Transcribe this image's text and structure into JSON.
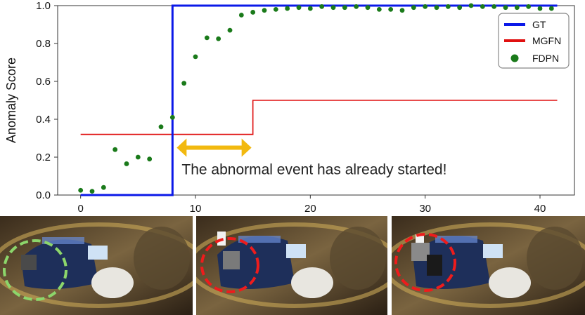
{
  "chart_data": {
    "type": "line",
    "title": "",
    "xlabel": "",
    "ylabel": "Anomaly Score",
    "xlim": [
      -2,
      43
    ],
    "ylim": [
      0.0,
      1.0
    ],
    "x_ticks": [
      0,
      10,
      20,
      30,
      40
    ],
    "y_ticks": [
      0.0,
      0.2,
      0.4,
      0.6,
      0.8,
      1.0
    ],
    "x_tick_labels": [
      "0",
      "10",
      "20",
      "30",
      "40"
    ],
    "y_tick_labels": [
      "0.0",
      "0.2",
      "0.4",
      "0.6",
      "0.8",
      "1.0"
    ],
    "legend_position": "top-right",
    "series": [
      {
        "name": "GT",
        "kind": "step-line",
        "color": "#0b19e8",
        "x": [
          0,
          8,
          8,
          41.5
        ],
        "y": [
          0.0,
          0.0,
          1.0,
          1.0
        ]
      },
      {
        "name": "MGFN",
        "kind": "step-line",
        "color": "#e01010",
        "x": [
          0,
          15,
          15,
          41.5
        ],
        "y": [
          0.32,
          0.32,
          0.5,
          0.5
        ]
      },
      {
        "name": "FDPN",
        "kind": "scatter",
        "color": "#1a7a1a",
        "x": [
          0,
          1,
          2,
          3,
          4,
          5,
          6,
          7,
          8,
          9,
          10,
          11,
          12,
          13,
          14,
          15,
          16,
          17,
          18,
          19,
          20,
          21,
          22,
          23,
          24,
          25,
          26,
          27,
          28,
          29,
          30,
          31,
          32,
          33,
          34,
          35,
          36,
          37,
          38,
          39,
          40,
          41
        ],
        "y": [
          0.025,
          0.02,
          0.04,
          0.24,
          0.165,
          0.2,
          0.19,
          0.36,
          0.41,
          0.59,
          0.73,
          0.83,
          0.825,
          0.87,
          0.95,
          0.965,
          0.975,
          0.98,
          0.985,
          0.99,
          0.985,
          0.995,
          0.99,
          0.99,
          0.995,
          0.99,
          0.98,
          0.98,
          0.975,
          0.99,
          0.995,
          0.99,
          0.995,
          0.99,
          1.0,
          0.995,
          0.995,
          0.99,
          0.99,
          0.995,
          0.985,
          0.985
        ]
      }
    ],
    "annotations": [
      {
        "text": "The abnormal event has already started!",
        "arrow_from_x": 8,
        "arrow_to_x": 15,
        "arrow_y": 0.25,
        "text_x": 8.8,
        "text_y": 0.11,
        "color": "#f2b90f"
      }
    ]
  },
  "frames": [
    {
      "name": "frame-1",
      "circle_color": "#8cd66b"
    },
    {
      "name": "frame-2",
      "circle_color": "#ee1c1c"
    },
    {
      "name": "frame-3",
      "circle_color": "#ee1c1c"
    }
  ]
}
